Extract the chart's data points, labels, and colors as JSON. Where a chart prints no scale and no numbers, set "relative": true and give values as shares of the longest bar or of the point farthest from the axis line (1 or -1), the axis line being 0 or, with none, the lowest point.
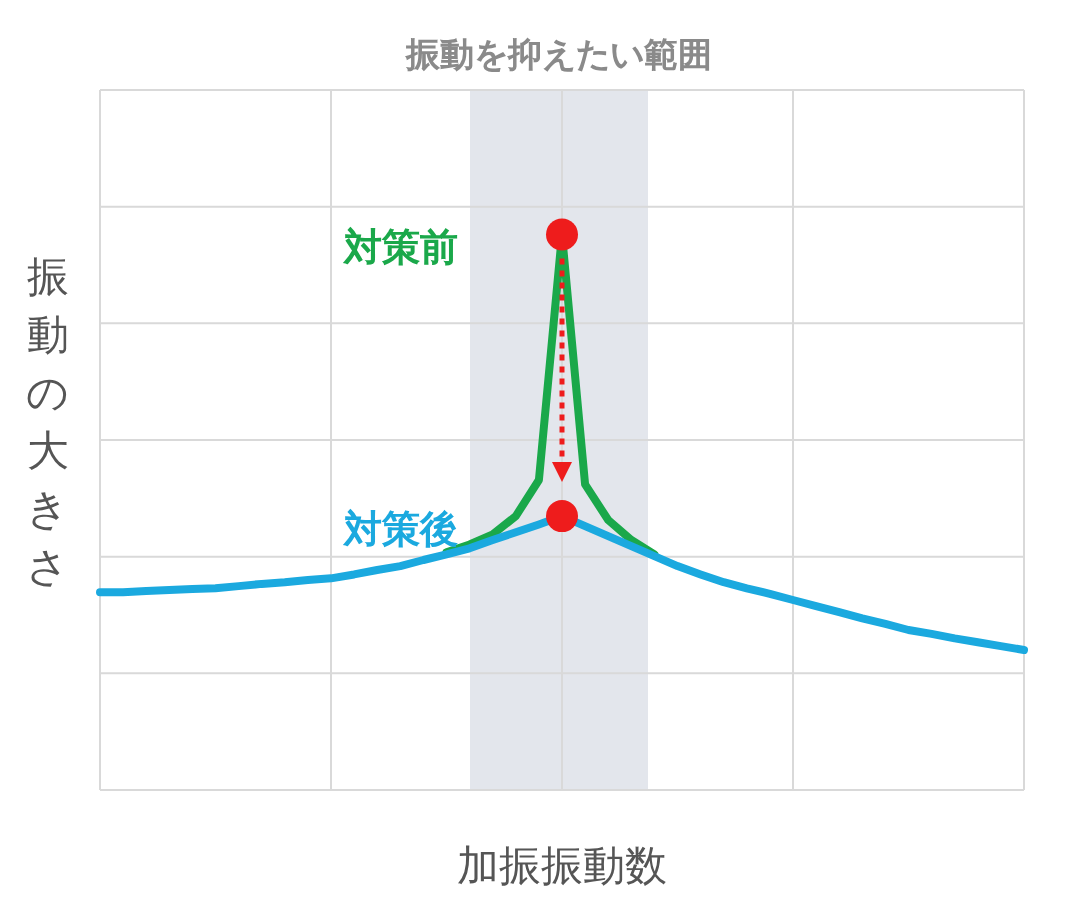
{
  "chart_data": {
    "type": "line",
    "relative": true,
    "xlabel": "加振振動数",
    "ylabel": "振動の大きさ",
    "grid": true,
    "annotations": [
      "振動を抑えたい範囲"
    ],
    "categories": [
      null,
      null,
      null,
      null,
      null,
      null,
      null,
      null,
      null,
      null,
      null,
      null,
      null,
      null,
      null,
      null,
      null,
      null,
      null,
      null,
      null,
      null,
      null,
      null,
      null,
      null,
      null,
      null,
      null,
      null,
      null,
      null,
      null,
      null,
      null,
      null,
      null,
      null,
      null,
      null,
      null
    ],
    "series": [
      {
        "name": "対策前",
        "color": "#1aa84a",
        "values": [
          null,
          null,
          null,
          null,
          null,
          null,
          null,
          null,
          null,
          null,
          null,
          null,
          null,
          null,
          null,
          0.428,
          0.442,
          0.46,
          0.493,
          0.558,
          1,
          0.55,
          0.486,
          0.45,
          0.424,
          null,
          null,
          null,
          null,
          null,
          null,
          null,
          null,
          null,
          null,
          null,
          null,
          null,
          null,
          null,
          null
        ]
      },
      {
        "name": "対策後",
        "color": "#1ba9df",
        "values": [
          0.356,
          0.356,
          0.358,
          0.36,
          0.362,
          0.363,
          0.367,
          0.371,
          0.374,
          0.378,
          0.381,
          0.388,
          0.396,
          0.403,
          0.414,
          0.424,
          0.435,
          0.45,
          0.464,
          0.478,
          0.493,
          0.475,
          0.457,
          0.439,
          0.421,
          0.403,
          0.388,
          0.374,
          0.363,
          0.353,
          0.342,
          0.331,
          0.32,
          0.309,
          0.299,
          0.288,
          0.281,
          0.273,
          0.266,
          0.259,
          0.252
        ]
      }
    ]
  }
}
